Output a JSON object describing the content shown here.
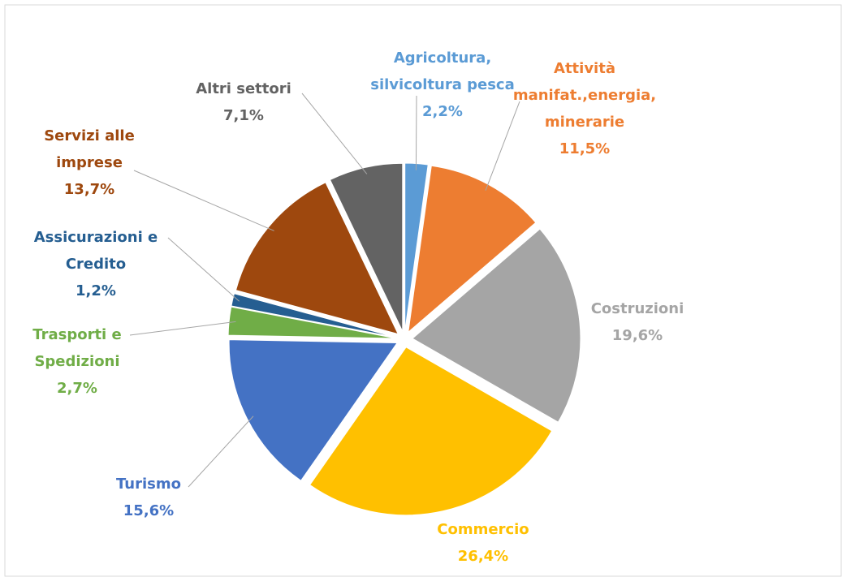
{
  "chart_data": {
    "type": "pie",
    "categories": [
      [
        "Agricoltura,",
        "silvicoltura pesca"
      ],
      [
        "Attività",
        "manifat.,energia,",
        "minerarie"
      ],
      [
        "Costruzioni"
      ],
      [
        "Commercio"
      ],
      [
        "Turismo"
      ],
      [
        "Trasporti e",
        "Spedizioni"
      ],
      [
        "Assicurazioni e",
        "Credito"
      ],
      [
        "Servizi alle",
        "imprese"
      ],
      [
        "Altri settori"
      ]
    ],
    "values": [
      2.2,
      11.5,
      19.6,
      26.4,
      15.6,
      2.7,
      1.2,
      13.7,
      7.1
    ],
    "value_labels": [
      "2,2%",
      "11,5%",
      "19,6%",
      "26,4%",
      "15,6%",
      "2,7%",
      "1,2%",
      "13,7%",
      "7,1%"
    ],
    "colors": [
      "#5b9bd5",
      "#ed7d31",
      "#a5a5a5",
      "#ffc000",
      "#4472c4",
      "#70ad47",
      "#255e91",
      "#9e480e",
      "#636363"
    ]
  }
}
